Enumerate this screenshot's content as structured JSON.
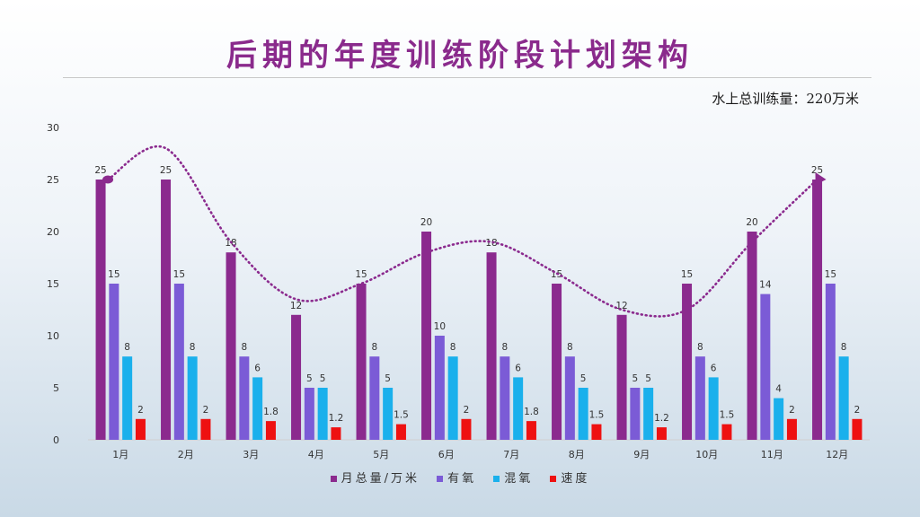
{
  "title": "后期的年度训练阶段计划架构",
  "note": "水上总训练量：220万米",
  "chart_data": {
    "type": "bar",
    "categories": [
      "1月",
      "2月",
      "3月",
      "4月",
      "5月",
      "6月",
      "7月",
      "8月",
      "9月",
      "10月",
      "11月",
      "12月"
    ],
    "series": [
      {
        "name": "月总量/万米",
        "color": "#8b2a8e",
        "values": [
          25,
          25,
          18,
          12,
          15,
          20,
          18,
          15,
          12,
          15,
          20,
          25
        ]
      },
      {
        "name": "有氧",
        "color": "#7b5bd6",
        "values": [
          15,
          15,
          8,
          5,
          8,
          10,
          8,
          8,
          5,
          8,
          14,
          15
        ]
      },
      {
        "name": "混氧",
        "color": "#1ab0ec",
        "values": [
          8,
          8,
          6,
          5,
          5,
          8,
          6,
          5,
          5,
          6,
          4,
          8
        ]
      },
      {
        "name": "速度",
        "color": "#ee1111",
        "values": [
          2,
          2,
          1.8,
          1.2,
          1.5,
          2,
          1.8,
          1.5,
          1.2,
          1.5,
          2,
          2
        ]
      }
    ],
    "data_labels": [
      [
        "25",
        "25",
        "18",
        "12",
        "15",
        "20",
        "18",
        "15",
        "12",
        "15",
        "20",
        "25"
      ],
      [
        "15",
        "15",
        "8",
        "5",
        "8",
        "10",
        "8",
        "8",
        "5",
        "8",
        "14",
        "15"
      ],
      [
        "8",
        "8",
        "6",
        "5",
        "5",
        "8",
        "6",
        "5",
        "5",
        "6",
        "4",
        "8"
      ],
      [
        "2",
        "2",
        "1.8",
        "1.2",
        "1.5",
        "2",
        "1.8",
        "1.5",
        "1.2",
        "1.5",
        "2",
        "2"
      ]
    ],
    "ylim": [
      0,
      30
    ],
    "yticks": [
      "0",
      "5",
      "10",
      "15",
      "20",
      "25",
      "30"
    ],
    "grid": false,
    "legend_position": "bottom",
    "trend_line": {
      "color": "#8b2a8e",
      "style": "dotted",
      "values": [
        25,
        28,
        19,
        13.5,
        15,
        18,
        19,
        16,
        12.5,
        12.5,
        19,
        25
      ]
    }
  }
}
